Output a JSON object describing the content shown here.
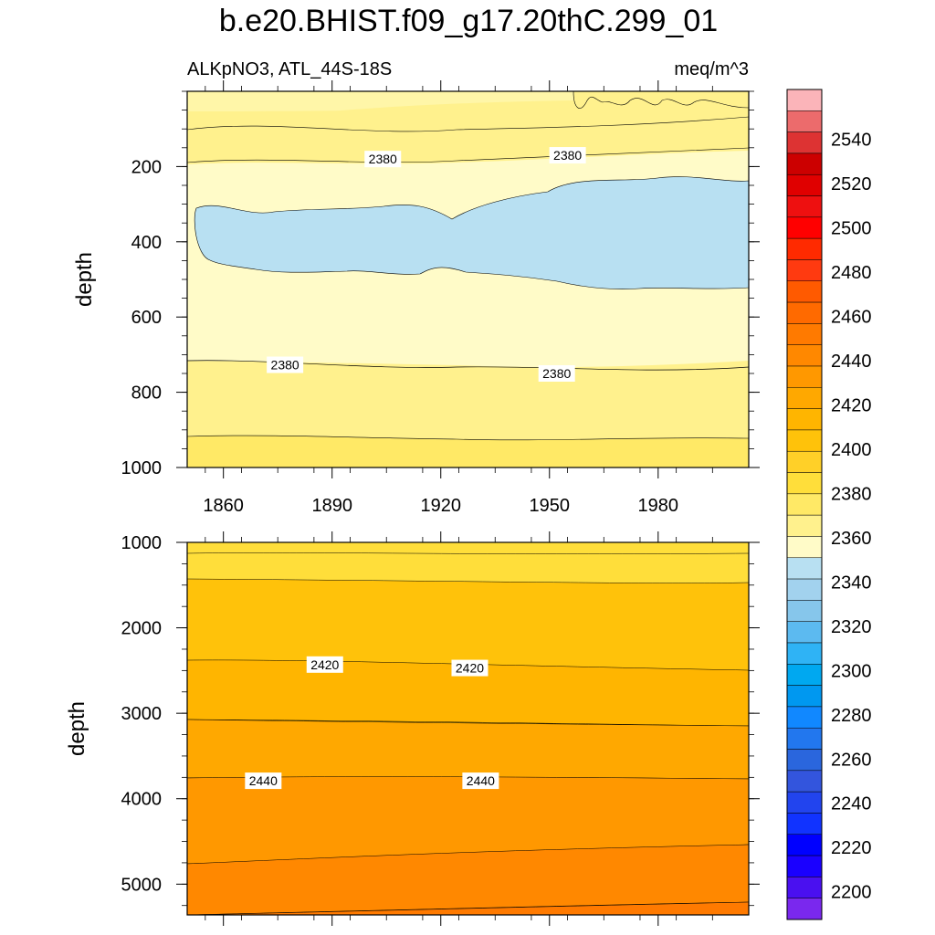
{
  "chart_data": {
    "type": "contour",
    "title": "b.e20.BHIST.f09_g17.20thC.299_01",
    "variable": "ALKpNO3, ATL_44S-18S",
    "units": "meq/m^3",
    "ylabel": "depth",
    "x_ticks": [
      "1860",
      "1890",
      "1920",
      "1950",
      "1980"
    ],
    "x_tick_values": [
      1860,
      1890,
      1920,
      1950,
      1980
    ],
    "xlim": [
      1850,
      2005
    ],
    "upper_panel": {
      "ylim": [
        0,
        1000
      ],
      "y_ticks": [
        "200",
        "400",
        "600",
        "800",
        "1000"
      ],
      "y_tick_values": [
        200,
        400,
        600,
        800,
        1000
      ],
      "contour_labels": [
        {
          "text": "2380",
          "year": 1904,
          "depth": 180
        },
        {
          "text": "2380",
          "year": 1955,
          "depth": 170
        },
        {
          "text": "2380",
          "year": 1877,
          "depth": 727
        },
        {
          "text": "2380",
          "year": 1952,
          "depth": 750
        }
      ]
    },
    "lower_panel": {
      "ylim": [
        1000,
        5360
      ],
      "y_ticks": [
        "1000",
        "2000",
        "3000",
        "4000",
        "5000"
      ],
      "y_tick_values": [
        1000,
        2000,
        3000,
        4000,
        5000
      ],
      "contour_labels": [
        {
          "text": "2420",
          "year": 1888,
          "depth": 2430
        },
        {
          "text": "2420",
          "year": 1928,
          "depth": 2470
        },
        {
          "text": "2440",
          "year": 1871,
          "depth": 3790
        },
        {
          "text": "2440",
          "year": 1931,
          "depth": 3790
        }
      ]
    },
    "colorbar": {
      "labels": [
        "2540",
        "2520",
        "2500",
        "2480",
        "2460",
        "2440",
        "2420",
        "2400",
        "2380",
        "2360",
        "2340",
        "2320",
        "2300",
        "2280",
        "2260",
        "2240",
        "2220",
        "2200"
      ],
      "label_values": [
        2540,
        2520,
        2500,
        2480,
        2460,
        2440,
        2420,
        2400,
        2380,
        2360,
        2340,
        2320,
        2300,
        2280,
        2260,
        2240,
        2220,
        2200
      ],
      "colors": [
        "#fbb4b9",
        "#ec6b6c",
        "#dd3333",
        "#cc0000",
        "#e00000",
        "#ee1010",
        "#ff0000",
        "#ff2a00",
        "#ff3a10",
        "#ff5a00",
        "#ff6a00",
        "#ff7a00",
        "#ff8800",
        "#ff9800",
        "#ffa800",
        "#ffb500",
        "#ffc20a",
        "#ffd028",
        "#ffde3a",
        "#ffe966",
        "#fff18d",
        "#fffbc8",
        "#b8e0f2",
        "#a2d2ee",
        "#86c6eb",
        "#5cbaf0",
        "#2fb3f5",
        "#00a8f0",
        "#0098f0",
        "#1188ff",
        "#2277ee",
        "#2a66dd",
        "#3355dd",
        "#2244ee",
        "#1133ff",
        "#0000ff",
        "#1a00ff",
        "#4a10f0",
        "#7a28ee"
      ]
    }
  }
}
